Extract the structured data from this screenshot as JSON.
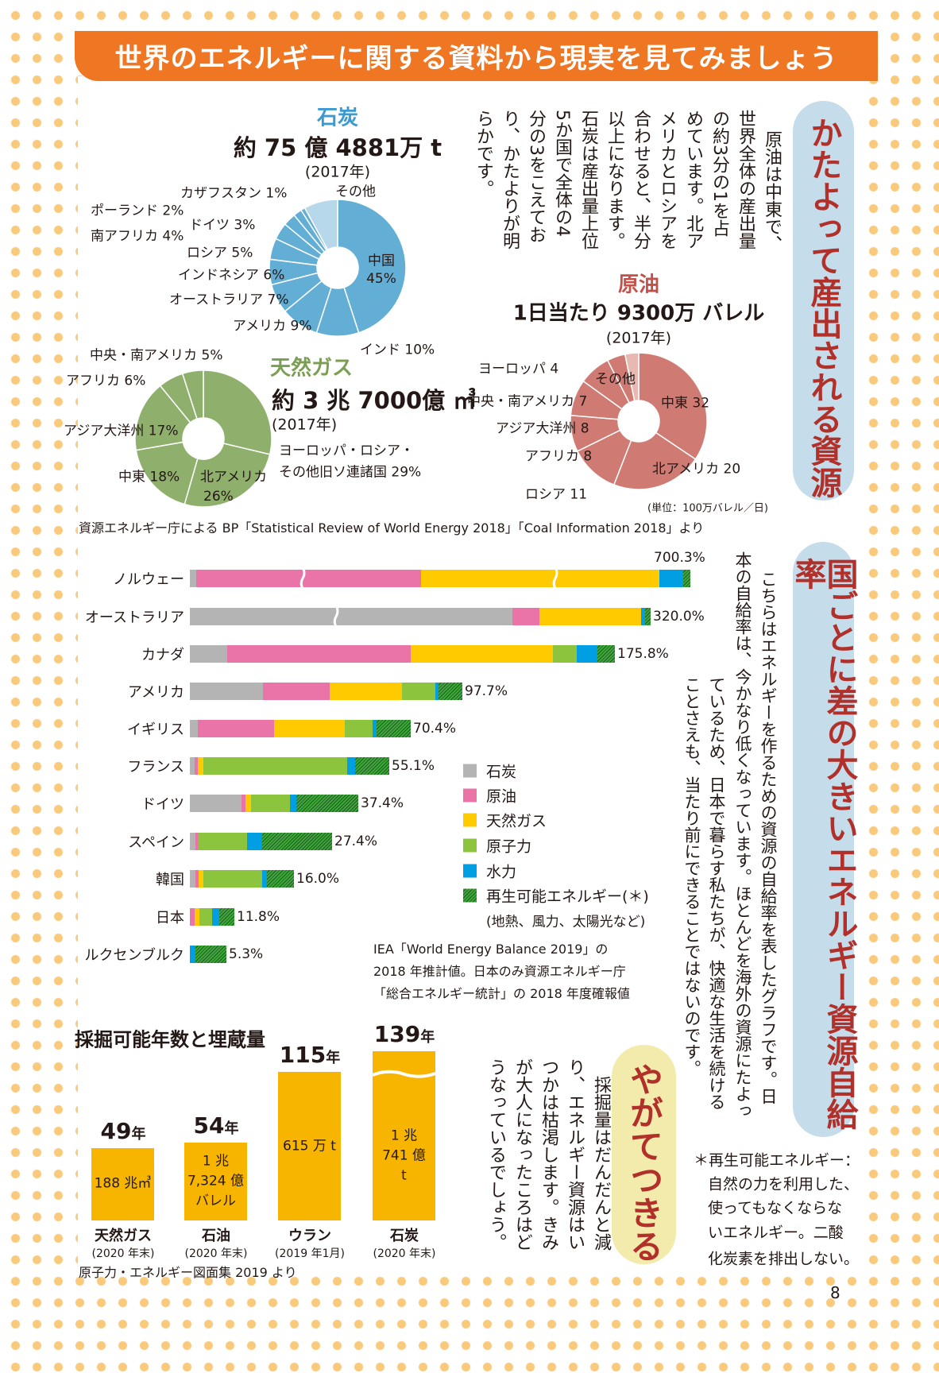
{
  "header": {
    "title": "世界のエネルギーに関する資料から現実を見てみましょう"
  },
  "section1": {
    "pill_title": "かたよって産出される資源",
    "body_lines": [
      "原油は中東で、",
      "世界全体の産出量",
      "の約3分の1を占",
      "めています。北ア",
      "メリカとロシアを",
      "合わせると、半分",
      "以上になります。",
      "石炭は産出量上位",
      "5か国で全体の4",
      "分の3をこえてお",
      "り、かたよりが明",
      "らかです。"
    ],
    "coal": {
      "title": "石炭",
      "amount": "約 75 億 4881万 t",
      "year": "(2017年)"
    },
    "gas": {
      "title": "天然ガス",
      "amount": "約 3 兆 7000億 ㎥",
      "year": "(2017年)"
    },
    "oil": {
      "title": "原油",
      "amount": "1日当たり 9300万 バレル",
      "year": "(2017年)",
      "unit_note": "(単位：100万バレル／日)"
    },
    "source": "資源エネルギー庁による BP「Statistical Review of World Energy 2018」「Coal Information 2018」より"
  },
  "section2": {
    "pill_title": "国ごとに差の大きいエネルギー資源自給率",
    "body_columns": [
      "こちらはエネルギーを作るための資源の自給率を表したグラフです。日",
      "本の自給率は、今かなり低くなっています。ほとんどを海外の資源にたよっ",
      "ているため、日本で暮らす私たちが、快適な生活を続ける",
      "ことさえも、当たり前にできることではないのです。"
    ],
    "legend": [
      {
        "label": "石炭",
        "color": "#b4b4b5"
      },
      {
        "label": "原油",
        "color": "#ea73a7"
      },
      {
        "label": "天然ガス",
        "color": "#ffcb00"
      },
      {
        "label": "原子力",
        "color": "#8cc43e"
      },
      {
        "label": "水力",
        "color": "#009fe3"
      },
      {
        "label": "再生可能エネルギー(＊)",
        "color": "#3fa63a"
      }
    ],
    "legend_note": "(地熱、風力、太陽光など)",
    "source_lines": [
      "IEA「World Energy Balance 2019」の",
      "2018 年推計値。日本のみ資源エネルギー庁",
      "「総合エネルギー統計」の 2018 年度確報値"
    ],
    "footnote_lines": [
      "＊再生可能エネルギー：",
      "自然の力を利用した、",
      "使ってもなくならな",
      "いエネルギー。二酸",
      "化炭素を排出しない。"
    ]
  },
  "section3": {
    "title": "採掘可能年数と埋蔵量",
    "pill_title": "やがてつきる",
    "body_columns": [
      "採掘量はだんだんと減",
      "り、エネルギー資源はい",
      "つかは枯渇します。きみ",
      "が大人になったころはど",
      "うなっているでしょう。"
    ],
    "source": "原子力・エネルギー図面集 2019 より"
  },
  "chart_data": [
    {
      "type": "pie",
      "title": "石炭",
      "unit": "%",
      "slices": [
        {
          "label": "中国",
          "value": 45
        },
        {
          "label": "インド",
          "value": 10
        },
        {
          "label": "アメリカ",
          "value": 9
        },
        {
          "label": "オーストラリア",
          "value": 7
        },
        {
          "label": "インドネシア",
          "value": 6
        },
        {
          "label": "ロシア",
          "value": 5
        },
        {
          "label": "南アフリカ",
          "value": 4
        },
        {
          "label": "ドイツ",
          "value": 3
        },
        {
          "label": "ポーランド",
          "value": 2
        },
        {
          "label": "カザフスタン",
          "value": 1
        },
        {
          "label": "その他",
          "value": 8
        }
      ],
      "labels": [
        "中国",
        "45%",
        "インド 10%",
        "アメリカ 9%",
        "オーストラリア 7%",
        "インドネシア 6%",
        "ロシア 5%",
        "南アフリカ 4%",
        "ドイツ 3%",
        "ポーランド 2%",
        "カザフスタン 1%",
        "その他"
      ],
      "color": "#62aed5",
      "other_color": "#b7d7ea"
    },
    {
      "type": "pie",
      "title": "天然ガス",
      "unit": "%",
      "slices": [
        {
          "label": "ヨーロッパ・ロシア・その他旧ソ連諸国",
          "value": 29
        },
        {
          "label": "北アメリカ",
          "value": 26
        },
        {
          "label": "中東",
          "value": 18
        },
        {
          "label": "アジア大洋州",
          "value": 17
        },
        {
          "label": "アフリカ",
          "value": 6
        },
        {
          "label": "中央・南アメリカ",
          "value": 5
        }
      ],
      "labels": [
        "ヨーロッパ・ロシア・",
        "その他旧ソ連諸国 29%",
        "北アメリカ",
        "26%",
        "中東 18%",
        "アジア大洋州 17%",
        "アフリカ 6%",
        "中央・南アメリカ 5%"
      ],
      "color": "#8fb06d"
    },
    {
      "type": "pie",
      "title": "原油",
      "unit": "100万バレル/日",
      "slices": [
        {
          "label": "中東",
          "value": 32
        },
        {
          "label": "北アメリカ",
          "value": 20
        },
        {
          "label": "ロシア",
          "value": 11
        },
        {
          "label": "アフリカ",
          "value": 8
        },
        {
          "label": "アジア大洋州",
          "value": 8
        },
        {
          "label": "中央・南アメリカ",
          "value": 7
        },
        {
          "label": "ヨーロッパ",
          "value": 4
        },
        {
          "label": "その他",
          "value": 3
        }
      ],
      "labels": [
        "中東 32",
        "北アメリカ 20",
        "ロシア 11",
        "アフリカ 8",
        "アジア大洋州 8",
        "中央・南アメリカ 7",
        "ヨーロッパ 4",
        "その他"
      ],
      "color": "#cf7b73",
      "other_color": "#e8b9b2"
    },
    {
      "type": "bar",
      "orientation": "horizontal",
      "stacked": true,
      "title": "エネルギー自給率",
      "unit": "%",
      "series_names": [
        "石炭",
        "原油",
        "天然ガス",
        "原子力",
        "水力",
        "再生可能エネルギー"
      ],
      "categories": [
        {
          "name": "ノルウェー",
          "total": "700.3%",
          "segments": [
            8.7,
            315.0,
            333.6,
            0,
            32.5,
            10.5
          ]
        },
        {
          "name": "オーストラリア",
          "total": "320.0%",
          "segments": [
            223.8,
            19.0,
            70.6,
            0,
            2.9,
            3.7
          ]
        },
        {
          "name": "カナダ",
          "total": "175.8%",
          "segments": [
            15.3,
            76.2,
            58.7,
            9.8,
            8.6,
            7.2
          ]
        },
        {
          "name": "アメリカ",
          "total": "97.7%",
          "segments": [
            26.3,
            23.9,
            25.9,
            11.9,
            1.2,
            8.5
          ]
        },
        {
          "name": "イギリス",
          "total": "70.4%",
          "segments": [
            2.6,
            24.3,
            22.5,
            8.8,
            1.2,
            11.0
          ]
        },
        {
          "name": "フランス",
          "total": "55.1%",
          "segments": [
            1.3,
            0.8,
            1.6,
            39.8,
            2.2,
            9.4
          ]
        },
        {
          "name": "ドイツ",
          "total": "37.4%",
          "segments": [
            11.5,
            0.9,
            1.2,
            8.7,
            1.3,
            13.8
          ]
        },
        {
          "name": "スペイン",
          "total": "27.4%",
          "segments": [
            1.0,
            0.6,
            0,
            9.4,
            3.0,
            13.4
          ]
        },
        {
          "name": "韓国",
          "total": "16.0%",
          "segments": [
            0.8,
            0.5,
            0.8,
            9.0,
            0.8,
            4.1
          ]
        },
        {
          "name": "日本",
          "total": "11.8%",
          "segments": [
            0,
            1.2,
            1.3,
            3.3,
            2.1,
            3.9
          ]
        },
        {
          "name": "ルクセンブルク",
          "total": "5.3%",
          "segments": [
            0,
            0,
            0,
            0,
            0.8,
            4.5
          ]
        }
      ],
      "axis_breaks": "ノルウェー, オーストラリア"
    },
    {
      "type": "bar",
      "title": "採掘可能年数と埋蔵量",
      "unit": "年",
      "bars": [
        {
          "name": "天然ガス",
          "years": 49,
          "years_label": "49",
          "reserve_lines": [
            "188 兆㎥"
          ],
          "date": "(2020 年末)"
        },
        {
          "name": "石油",
          "years": 54,
          "years_label": "54",
          "reserve_lines": [
            "1 兆",
            "7,324 億",
            "バレル"
          ],
          "date": "(2020 年末)"
        },
        {
          "name": "ウラン",
          "years": 115,
          "years_label": "115",
          "reserve_lines": [
            "615 万 t"
          ],
          "date": "(2019 年1月)"
        },
        {
          "name": "石炭",
          "years": 139,
          "years_label": "139",
          "reserve_lines": [
            "1 兆",
            "741 億",
            "t"
          ],
          "date": "(2020 年末)"
        }
      ],
      "year_suffix": "年"
    }
  ],
  "page_number": "8"
}
